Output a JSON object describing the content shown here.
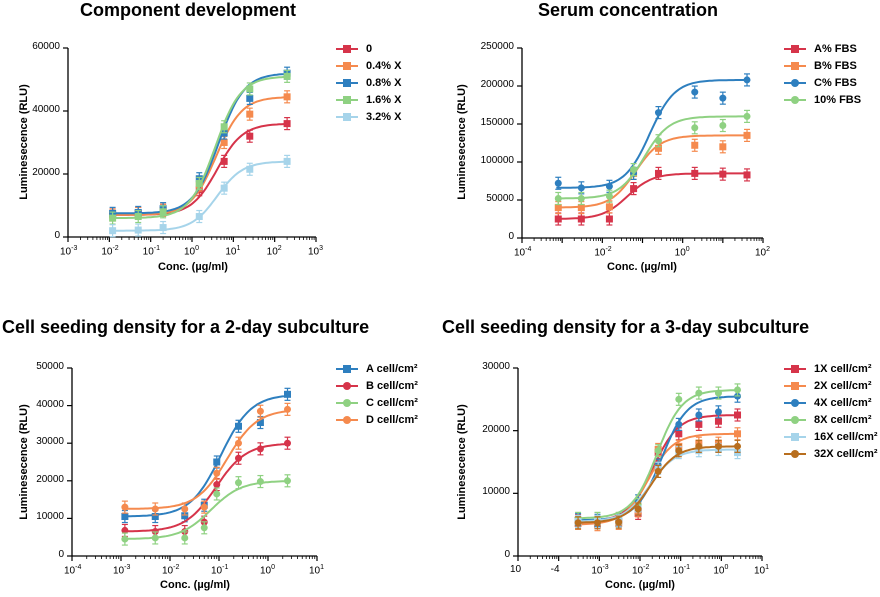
{
  "chart_data": [
    {
      "type": "line",
      "title": "Component development",
      "xlabel": "Conc. (µg/ml)",
      "ylabel": "Luminesecence (RLU)",
      "x_scale": "log",
      "xlim_exp": [
        -3,
        3
      ],
      "x_ticks": [
        "-3",
        "-2",
        "-1",
        "0",
        "1",
        "2",
        "3"
      ],
      "ylim": [
        0,
        60000
      ],
      "y_ticks": [
        0,
        20000,
        40000,
        60000
      ],
      "legend_position": "right",
      "series": [
        {
          "name": "0",
          "color": "#d6344a",
          "marker": "square",
          "x": [
            0.012,
            0.05,
            0.2,
            1.5,
            6,
            25,
            200
          ],
          "y": [
            7000,
            7500,
            8500,
            15000,
            24000,
            32000,
            36000
          ]
        },
        {
          "name": "0.4% X",
          "color": "#f58a4e",
          "marker": "square",
          "x": [
            0.012,
            0.05,
            0.2,
            1.5,
            6,
            25,
            200
          ],
          "y": [
            7000,
            7500,
            8500,
            16500,
            30000,
            39000,
            44500
          ]
        },
        {
          "name": "0.8% X",
          "color": "#2e7fbf",
          "marker": "square",
          "x": [
            0.012,
            0.05,
            0.2,
            1.5,
            6,
            25,
            200
          ],
          "y": [
            7500,
            7800,
            9000,
            18500,
            33000,
            44000,
            52000
          ]
        },
        {
          "name": "1.6% X",
          "color": "#8fd182",
          "marker": "square",
          "x": [
            0.012,
            0.05,
            0.2,
            1.5,
            6,
            25,
            200
          ],
          "y": [
            6000,
            6500,
            8000,
            17000,
            35000,
            47000,
            51000
          ]
        },
        {
          "name": "3.2% X",
          "color": "#a6d4ea",
          "marker": "square",
          "x": [
            0.012,
            0.05,
            0.2,
            1.5,
            6,
            25,
            200
          ],
          "y": [
            2000,
            2200,
            3000,
            6500,
            15500,
            21500,
            24000
          ]
        }
      ]
    },
    {
      "type": "line",
      "title": "Serum concentration",
      "xlabel": "Conc. (µg/ml)",
      "ylabel": "Luminesecence (RLU)",
      "x_scale": "log",
      "xlim_exp": [
        -4,
        2
      ],
      "x_ticks": [
        "-4",
        "-2",
        "0",
        "2"
      ],
      "ylim": [
        0,
        250000
      ],
      "y_ticks": [
        0,
        50000,
        100000,
        150000,
        200000,
        250000
      ],
      "legend_position": "right",
      "series": [
        {
          "name": "A% FBS",
          "color": "#d6344a",
          "marker": "square",
          "x": [
            0.0008,
            0.003,
            0.015,
            0.06,
            0.25,
            2,
            10,
            40
          ],
          "y": [
            25000,
            25000,
            25000,
            65000,
            85000,
            85000,
            84000,
            83000
          ]
        },
        {
          "name": "B% FBS",
          "color": "#f58a4e",
          "marker": "square",
          "x": [
            0.0008,
            0.003,
            0.015,
            0.06,
            0.25,
            2,
            10,
            40
          ],
          "y": [
            40000,
            40000,
            41000,
            85000,
            118000,
            122000,
            120000,
            135000
          ]
        },
        {
          "name": "C% FBS",
          "color": "#2e7fbf",
          "marker": "circle",
          "x": [
            0.0008,
            0.003,
            0.015,
            0.06,
            0.25,
            2,
            10,
            40
          ],
          "y": [
            72000,
            66000,
            68000,
            85000,
            165000,
            192000,
            184000,
            208000
          ]
        },
        {
          "name": "10% FBS",
          "color": "#8fd182",
          "marker": "circle",
          "x": [
            0.0008,
            0.003,
            0.015,
            0.06,
            0.25,
            2,
            10,
            40
          ],
          "y": [
            52000,
            52000,
            55000,
            90000,
            128000,
            145000,
            148000,
            160000
          ]
        }
      ]
    },
    {
      "type": "line",
      "title": "Cell seeding density for a 2-day subculture",
      "xlabel": "Conc. (µg/ml)",
      "ylabel": "Luminesecence (RLU)",
      "x_scale": "log",
      "xlim_exp": [
        -4,
        1
      ],
      "x_ticks": [
        "-4",
        "-3",
        "-2",
        "-1",
        "0",
        "1"
      ],
      "ylim": [
        0,
        50000
      ],
      "y_ticks": [
        0,
        10000,
        20000,
        30000,
        40000,
        50000
      ],
      "legend_position": "right",
      "series": [
        {
          "name": "A cell/cm²",
          "color": "#2e7fbf",
          "marker": "square",
          "x": [
            0.0012,
            0.005,
            0.02,
            0.05,
            0.09,
            0.25,
            0.7,
            2.5
          ],
          "y": [
            10500,
            10500,
            10700,
            13500,
            25000,
            34500,
            35500,
            43000
          ]
        },
        {
          "name": "B cell/cm²",
          "color": "#d6344a",
          "marker": "circle",
          "x": [
            0.0012,
            0.005,
            0.02,
            0.05,
            0.09,
            0.25,
            0.7,
            2.5
          ],
          "y": [
            6800,
            6500,
            6500,
            9000,
            19000,
            26000,
            28500,
            30000
          ]
        },
        {
          "name": "C cell/cm²",
          "color": "#8fd182",
          "marker": "circle",
          "x": [
            0.0012,
            0.005,
            0.02,
            0.05,
            0.09,
            0.25,
            0.7,
            2.5
          ],
          "y": [
            4500,
            4800,
            4800,
            7500,
            16500,
            19500,
            19800,
            20000
          ]
        },
        {
          "name": "D cell/cm²",
          "color": "#f58a4e",
          "marker": "circle",
          "x": [
            0.0012,
            0.005,
            0.02,
            0.05,
            0.09,
            0.25,
            0.7,
            2.5
          ],
          "y": [
            13000,
            12500,
            12500,
            13000,
            22000,
            30000,
            38500,
            39000
          ]
        }
      ]
    },
    {
      "type": "line",
      "title": "Cell seeding density for a 3-day subculture",
      "xlabel": "Conc. (µg/ml)",
      "ylabel": "Luminesecence (RLU)",
      "x_scale": "log",
      "xlim_exp": [
        -5,
        1
      ],
      "x_ticks": [
        "10",
        "-4",
        "10-3",
        "10-2",
        "10-1",
        "100",
        "101"
      ],
      "ylim": [
        0,
        30000
      ],
      "y_ticks": [
        0,
        10000,
        20000,
        30000
      ],
      "legend_position": "right",
      "series": [
        {
          "name": "1X cell/cm²",
          "color": "#d6344a",
          "marker": "square",
          "x": [
            0.0003,
            0.0009,
            0.003,
            0.009,
            0.028,
            0.09,
            0.28,
            0.85,
            2.5
          ],
          "y": [
            5700,
            5500,
            5600,
            6800,
            16500,
            19500,
            21000,
            21500,
            22500
          ]
        },
        {
          "name": "2X cell/cm²",
          "color": "#f58a4e",
          "marker": "square",
          "x": [
            0.0003,
            0.0009,
            0.003,
            0.009,
            0.028,
            0.09,
            0.28,
            0.85,
            2.5
          ],
          "y": [
            5200,
            5000,
            5200,
            7200,
            17000,
            17500,
            18000,
            18000,
            19500
          ]
        },
        {
          "name": "4X cell/cm²",
          "color": "#2e7fbf",
          "marker": "circle",
          "x": [
            0.0003,
            0.0009,
            0.003,
            0.009,
            0.028,
            0.09,
            0.28,
            0.85,
            2.5
          ],
          "y": [
            5800,
            5700,
            5700,
            8800,
            14500,
            21000,
            22500,
            23000,
            25500
          ]
        },
        {
          "name": "8X cell/cm²",
          "color": "#8fd182",
          "marker": "circle",
          "x": [
            0.0003,
            0.0009,
            0.003,
            0.009,
            0.028,
            0.09,
            0.28,
            0.85,
            2.5
          ],
          "y": [
            6000,
            6000,
            6000,
            8200,
            16800,
            25000,
            26000,
            26000,
            26500
          ]
        },
        {
          "name": "16X cell/cm²",
          "color": "#a6d4ea",
          "marker": "square",
          "x": [
            0.0003,
            0.0009,
            0.003,
            0.009,
            0.028,
            0.09,
            0.28,
            0.85,
            2.5
          ],
          "y": [
            5500,
            5500,
            5600,
            7500,
            14000,
            16500,
            16800,
            17000,
            16500
          ]
        },
        {
          "name": "32X cell/cm²",
          "color": "#b86e1e",
          "marker": "circle",
          "x": [
            0.0003,
            0.0009,
            0.003,
            0.009,
            0.028,
            0.09,
            0.28,
            0.85,
            2.5
          ],
          "y": [
            5300,
            5300,
            5400,
            7500,
            13500,
            16800,
            17500,
            17500,
            17500
          ]
        }
      ]
    }
  ]
}
